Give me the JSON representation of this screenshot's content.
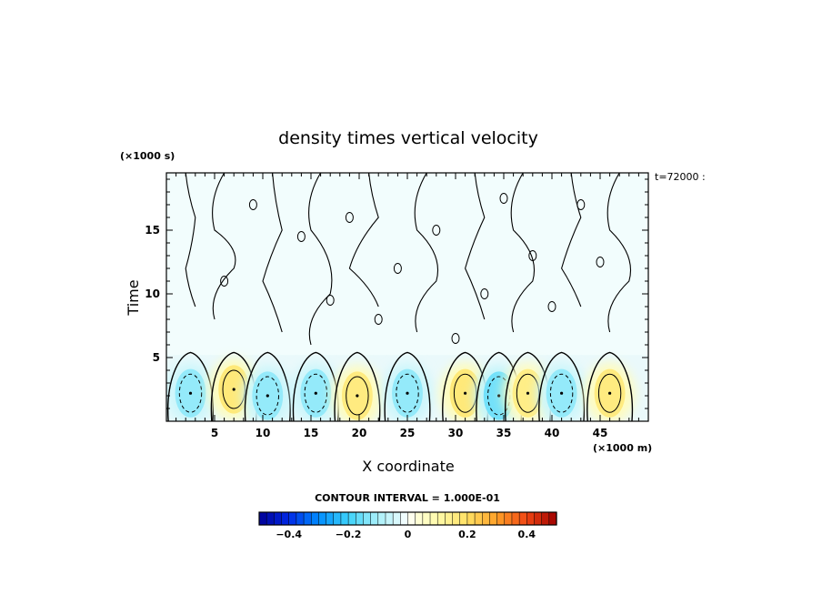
{
  "chart_data": {
    "type": "heatmap",
    "title": "density times vertical velocity",
    "xlabel": "X coordinate",
    "ylabel": "Time",
    "x_unit": "(×1000 m)",
    "y_unit": "(×1000 s)",
    "time_label": "t=72000 :",
    "xlim": [
      0,
      50
    ],
    "ylim": [
      0,
      19.5
    ],
    "x_ticks": [
      5,
      10,
      15,
      20,
      25,
      30,
      35,
      40,
      45
    ],
    "y_ticks": [
      5,
      10,
      15
    ],
    "contour_interval_label": "CONTOUR INTERVAL = 1.000E-01",
    "colorbar": {
      "min": -0.5,
      "max": 0.5,
      "step": 0.025,
      "tick_values": [
        -0.4,
        -0.2,
        0,
        0.2,
        0.4
      ],
      "tick_labels": [
        "−0.4",
        "−0.2",
        "0",
        "0.2",
        "0.4"
      ]
    },
    "cells": [
      {
        "x": 2.5,
        "t": 2.2,
        "value": -0.12,
        "sign": "negative"
      },
      {
        "x": 7.0,
        "t": 2.5,
        "value": 0.17,
        "sign": "positive"
      },
      {
        "x": 10.5,
        "t": 2.0,
        "value": -0.12,
        "sign": "negative"
      },
      {
        "x": 15.5,
        "t": 2.2,
        "value": -0.12,
        "sign": "negative"
      },
      {
        "x": 19.8,
        "t": 2.0,
        "value": 0.16,
        "sign": "positive"
      },
      {
        "x": 25.0,
        "t": 2.2,
        "value": -0.12,
        "sign": "negative"
      },
      {
        "x": 31.0,
        "t": 2.2,
        "value": 0.17,
        "sign": "positive"
      },
      {
        "x": 34.5,
        "t": 2.0,
        "value": -0.15,
        "sign": "negative"
      },
      {
        "x": 37.5,
        "t": 2.2,
        "value": 0.15,
        "sign": "positive"
      },
      {
        "x": 41.0,
        "t": 2.2,
        "value": -0.12,
        "sign": "negative"
      },
      {
        "x": 46.0,
        "t": 2.2,
        "value": 0.16,
        "sign": "positive"
      }
    ]
  }
}
